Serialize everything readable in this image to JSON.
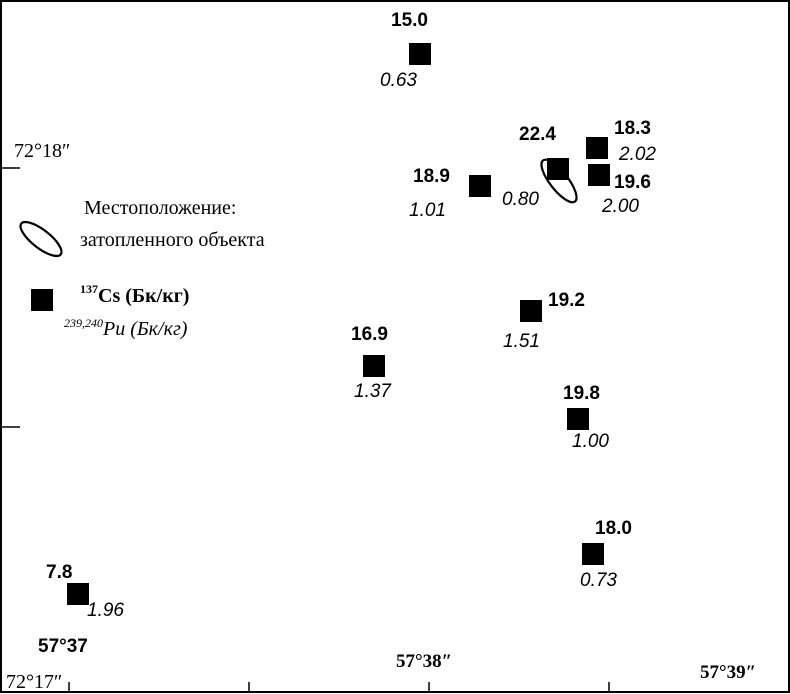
{
  "axes": {
    "lat_top": "72°18″",
    "lat_bottom": "72°17″",
    "lon_left": "57°37",
    "lon_mid": "57°38″",
    "lon_right": "57°39″"
  },
  "legend": {
    "object_line1": "Местоположение:",
    "object_line2": "затопленного объекта",
    "cs_sup": "137",
    "cs_text": "Cs (Бк/кг)",
    "pu_sup": "239,240",
    "pu_text": "Pu (Бк/кг)"
  },
  "stations": [
    {
      "cs": "15.0",
      "pu": "0.63"
    },
    {
      "cs": "22.4",
      "pu": "0.80"
    },
    {
      "cs": "18.3",
      "pu": "2.02"
    },
    {
      "cs": "18.9",
      "pu": "1.01"
    },
    {
      "cs": "19.6",
      "pu": "2.00"
    },
    {
      "cs": "19.2",
      "pu": "1.51"
    },
    {
      "cs": "16.9",
      "pu": "1.37"
    },
    {
      "cs": "19.8",
      "pu": "1.00"
    },
    {
      "cs": "18.0",
      "pu": "0.73"
    },
    {
      "cs": "7.8",
      "pu": "1.96"
    }
  ],
  "colors": {
    "ink": "#000000",
    "background": "#ffffff"
  }
}
